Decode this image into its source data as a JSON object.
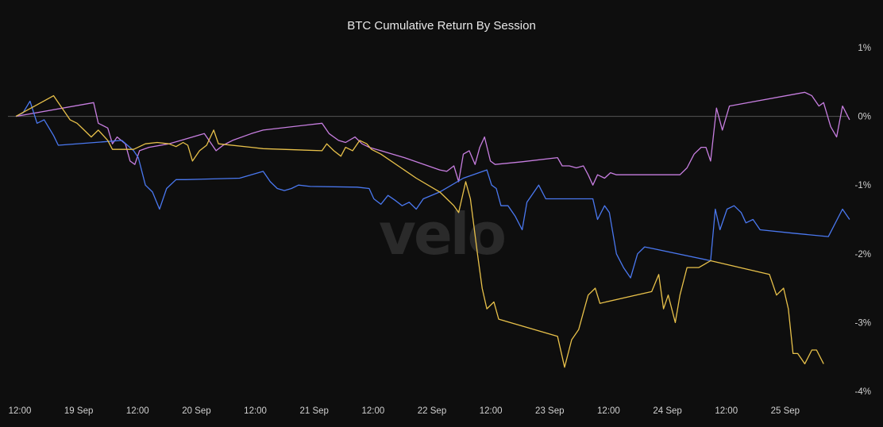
{
  "chart_data": {
    "type": "line",
    "title": "BTC Cumulative Return By Session",
    "watermark": "velo",
    "background": "#0e0e0e",
    "x_tick_labels": [
      "12:00",
      "19 Sep",
      "12:00",
      "20 Sep",
      "12:00",
      "21 Sep",
      "12:00",
      "22 Sep",
      "12:00",
      "23 Sep",
      "12:00",
      "24 Sep",
      "12:00",
      "25 Sep"
    ],
    "xlim": [
      0,
      7
    ],
    "ylim": [
      -4,
      1
    ],
    "y_ticks": [
      {
        "value": 1,
        "label": "1%"
      },
      {
        "value": 0,
        "label": "0%"
      },
      {
        "value": -1,
        "label": "-1%"
      },
      {
        "value": -2,
        "label": "-2%"
      },
      {
        "value": -3,
        "label": "-3%"
      },
      {
        "value": -4,
        "label": "-4%"
      }
    ],
    "zero_line": true,
    "grid": false,
    "legend": "none",
    "series": [
      {
        "color": "#c77ee0",
        "points": [
          [
            0.0,
            0.0
          ],
          [
            0.66,
            0.2
          ],
          [
            0.7,
            -0.1
          ],
          [
            0.78,
            -0.17
          ],
          [
            0.82,
            -0.4
          ],
          [
            0.86,
            -0.3
          ],
          [
            0.93,
            -0.4
          ],
          [
            0.97,
            -0.65
          ],
          [
            1.01,
            -0.7
          ],
          [
            1.05,
            -0.5
          ],
          [
            1.13,
            -0.45
          ],
          [
            1.3,
            -0.4
          ],
          [
            1.5,
            -0.3
          ],
          [
            1.6,
            -0.25
          ],
          [
            1.66,
            -0.4
          ],
          [
            1.7,
            -0.5
          ],
          [
            1.76,
            -0.42
          ],
          [
            1.84,
            -0.35
          ],
          [
            2.0,
            -0.25
          ],
          [
            2.1,
            -0.2
          ],
          [
            2.6,
            -0.1
          ],
          [
            2.66,
            -0.25
          ],
          [
            2.74,
            -0.35
          ],
          [
            2.8,
            -0.38
          ],
          [
            2.88,
            -0.3
          ],
          [
            2.94,
            -0.4
          ],
          [
            3.0,
            -0.45
          ],
          [
            3.1,
            -0.5
          ],
          [
            3.3,
            -0.6
          ],
          [
            3.6,
            -0.78
          ],
          [
            3.66,
            -0.8
          ],
          [
            3.72,
            -0.72
          ],
          [
            3.76,
            -0.95
          ],
          [
            3.8,
            -0.55
          ],
          [
            3.85,
            -0.5
          ],
          [
            3.9,
            -0.7
          ],
          [
            3.94,
            -0.45
          ],
          [
            3.98,
            -0.3
          ],
          [
            4.03,
            -0.65
          ],
          [
            4.07,
            -0.7
          ],
          [
            4.3,
            -0.66
          ],
          [
            4.6,
            -0.6
          ],
          [
            4.64,
            -0.72
          ],
          [
            4.7,
            -0.72
          ],
          [
            4.76,
            -0.75
          ],
          [
            4.82,
            -0.72
          ],
          [
            4.86,
            -0.85
          ],
          [
            4.9,
            -1.0
          ],
          [
            4.94,
            -0.85
          ],
          [
            5.0,
            -0.9
          ],
          [
            5.05,
            -0.82
          ],
          [
            5.1,
            -0.85
          ],
          [
            5.4,
            -0.85
          ],
          [
            5.64,
            -0.85
          ],
          [
            5.7,
            -0.75
          ],
          [
            5.76,
            -0.55
          ],
          [
            5.82,
            -0.45
          ],
          [
            5.86,
            -0.45
          ],
          [
            5.9,
            -0.65
          ],
          [
            5.95,
            0.12
          ],
          [
            6.0,
            -0.2
          ],
          [
            6.06,
            0.15
          ],
          [
            6.7,
            0.35
          ],
          [
            6.76,
            0.3
          ],
          [
            6.82,
            0.15
          ],
          [
            6.86,
            0.2
          ],
          [
            6.92,
            -0.15
          ],
          [
            6.97,
            -0.3
          ],
          [
            7.02,
            0.15
          ],
          [
            7.08,
            -0.05
          ]
        ]
      },
      {
        "color": "#4a78f0",
        "points": [
          [
            0.0,
            0.0
          ],
          [
            0.06,
            0.05
          ],
          [
            0.12,
            0.22
          ],
          [
            0.18,
            -0.1
          ],
          [
            0.24,
            -0.05
          ],
          [
            0.32,
            -0.28
          ],
          [
            0.36,
            -0.42
          ],
          [
            0.9,
            -0.35
          ],
          [
            1.0,
            -0.5
          ],
          [
            1.04,
            -0.6
          ],
          [
            1.1,
            -1.0
          ],
          [
            1.16,
            -1.1
          ],
          [
            1.22,
            -1.35
          ],
          [
            1.28,
            -1.05
          ],
          [
            1.36,
            -0.92
          ],
          [
            1.44,
            -0.92
          ],
          [
            1.9,
            -0.9
          ],
          [
            2.1,
            -0.8
          ],
          [
            2.16,
            -0.95
          ],
          [
            2.22,
            -1.05
          ],
          [
            2.28,
            -1.08
          ],
          [
            2.34,
            -1.05
          ],
          [
            2.4,
            -1.0
          ],
          [
            2.5,
            -1.02
          ],
          [
            2.9,
            -1.03
          ],
          [
            3.0,
            -1.05
          ],
          [
            3.04,
            -1.2
          ],
          [
            3.1,
            -1.28
          ],
          [
            3.16,
            -1.15
          ],
          [
            3.22,
            -1.22
          ],
          [
            3.28,
            -1.3
          ],
          [
            3.34,
            -1.25
          ],
          [
            3.4,
            -1.35
          ],
          [
            3.46,
            -1.2
          ],
          [
            3.6,
            -1.1
          ],
          [
            3.8,
            -0.9
          ],
          [
            4.0,
            -0.78
          ],
          [
            4.04,
            -1.0
          ],
          [
            4.08,
            -1.05
          ],
          [
            4.12,
            -1.3
          ],
          [
            4.18,
            -1.3
          ],
          [
            4.24,
            -1.45
          ],
          [
            4.3,
            -1.65
          ],
          [
            4.34,
            -1.25
          ],
          [
            4.38,
            -1.15
          ],
          [
            4.44,
            -1.0
          ],
          [
            4.5,
            -1.2
          ],
          [
            4.6,
            -1.2
          ],
          [
            4.9,
            -1.2
          ],
          [
            4.94,
            -1.5
          ],
          [
            5.0,
            -1.3
          ],
          [
            5.04,
            -1.4
          ],
          [
            5.1,
            -2.0
          ],
          [
            5.16,
            -2.2
          ],
          [
            5.22,
            -2.35
          ],
          [
            5.28,
            -2.0
          ],
          [
            5.34,
            -1.9
          ],
          [
            5.4,
            -1.92
          ],
          [
            5.9,
            -2.1
          ],
          [
            5.94,
            -1.35
          ],
          [
            5.98,
            -1.65
          ],
          [
            6.04,
            -1.35
          ],
          [
            6.1,
            -1.3
          ],
          [
            6.16,
            -1.4
          ],
          [
            6.2,
            -1.55
          ],
          [
            6.26,
            -1.5
          ],
          [
            6.32,
            -1.65
          ],
          [
            6.6,
            -1.7
          ],
          [
            6.9,
            -1.75
          ],
          [
            7.02,
            -1.35
          ],
          [
            7.08,
            -1.5
          ]
        ]
      },
      {
        "color": "#e8c14a",
        "points": [
          [
            0.0,
            0.0
          ],
          [
            0.32,
            0.3
          ],
          [
            0.4,
            0.1
          ],
          [
            0.46,
            -0.05
          ],
          [
            0.52,
            -0.1
          ],
          [
            0.58,
            -0.2
          ],
          [
            0.64,
            -0.3
          ],
          [
            0.7,
            -0.2
          ],
          [
            0.78,
            -0.35
          ],
          [
            0.82,
            -0.48
          ],
          [
            1.0,
            -0.48
          ],
          [
            1.1,
            -0.4
          ],
          [
            1.2,
            -0.38
          ],
          [
            1.3,
            -0.4
          ],
          [
            1.36,
            -0.44
          ],
          [
            1.42,
            -0.38
          ],
          [
            1.46,
            -0.42
          ],
          [
            1.5,
            -0.65
          ],
          [
            1.56,
            -0.5
          ],
          [
            1.62,
            -0.42
          ],
          [
            1.68,
            -0.2
          ],
          [
            1.72,
            -0.4
          ],
          [
            2.0,
            -0.45
          ],
          [
            2.1,
            -0.47
          ],
          [
            2.6,
            -0.5
          ],
          [
            2.64,
            -0.4
          ],
          [
            2.7,
            -0.5
          ],
          [
            2.76,
            -0.58
          ],
          [
            2.8,
            -0.45
          ],
          [
            2.86,
            -0.5
          ],
          [
            2.92,
            -0.35
          ],
          [
            2.98,
            -0.4
          ],
          [
            3.02,
            -0.48
          ],
          [
            3.1,
            -0.55
          ],
          [
            3.4,
            -0.9
          ],
          [
            3.6,
            -1.1
          ],
          [
            3.66,
            -1.2
          ],
          [
            3.72,
            -1.3
          ],
          [
            3.76,
            -1.4
          ],
          [
            3.82,
            -0.95
          ],
          [
            3.86,
            -1.2
          ],
          [
            3.92,
            -2.0
          ],
          [
            3.96,
            -2.5
          ],
          [
            4.0,
            -2.8
          ],
          [
            4.06,
            -2.7
          ],
          [
            4.1,
            -2.95
          ],
          [
            4.6,
            -3.2
          ],
          [
            4.66,
            -3.65
          ],
          [
            4.72,
            -3.25
          ],
          [
            4.78,
            -3.1
          ],
          [
            4.82,
            -2.85
          ],
          [
            4.86,
            -2.6
          ],
          [
            4.92,
            -2.5
          ],
          [
            4.96,
            -2.72
          ],
          [
            5.4,
            -2.55
          ],
          [
            5.46,
            -2.3
          ],
          [
            5.5,
            -2.8
          ],
          [
            5.54,
            -2.6
          ],
          [
            5.6,
            -3.0
          ],
          [
            5.64,
            -2.6
          ],
          [
            5.7,
            -2.2
          ],
          [
            5.8,
            -2.2
          ],
          [
            5.9,
            -2.1
          ],
          [
            6.4,
            -2.3
          ],
          [
            6.46,
            -2.6
          ],
          [
            6.52,
            -2.5
          ],
          [
            6.56,
            -2.8
          ],
          [
            6.6,
            -3.45
          ],
          [
            6.64,
            -3.45
          ],
          [
            6.7,
            -3.6
          ],
          [
            6.76,
            -3.4
          ],
          [
            6.8,
            -3.4
          ],
          [
            6.86,
            -3.6
          ]
        ]
      }
    ]
  }
}
